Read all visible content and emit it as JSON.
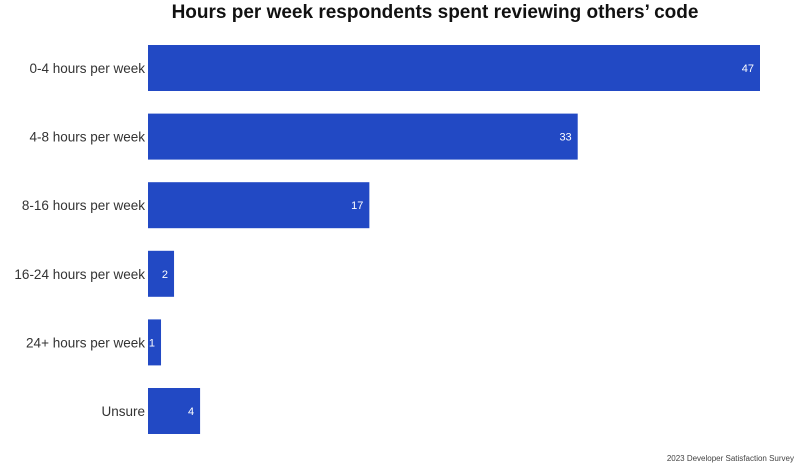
{
  "chart_data": {
    "type": "bar",
    "orientation": "horizontal",
    "title": "Hours per week respondents spent reviewing others’ code",
    "categories": [
      "0-4 hours per week",
      "4-8 hours per week",
      "8-16 hours per week",
      "16-24 hours per week",
      "24+ hours per week",
      "Unsure"
    ],
    "values": [
      47,
      33,
      17,
      2,
      1,
      4
    ],
    "data_labels": [
      "47",
      "33",
      "17",
      "2",
      "1",
      "4"
    ],
    "xlim": [
      0,
      47
    ],
    "grid": false,
    "legend": "none",
    "bar_color": "#2249c4",
    "data_label_color": "#ffffff",
    "source": "2023 Developer Satisfaction Survey"
  }
}
